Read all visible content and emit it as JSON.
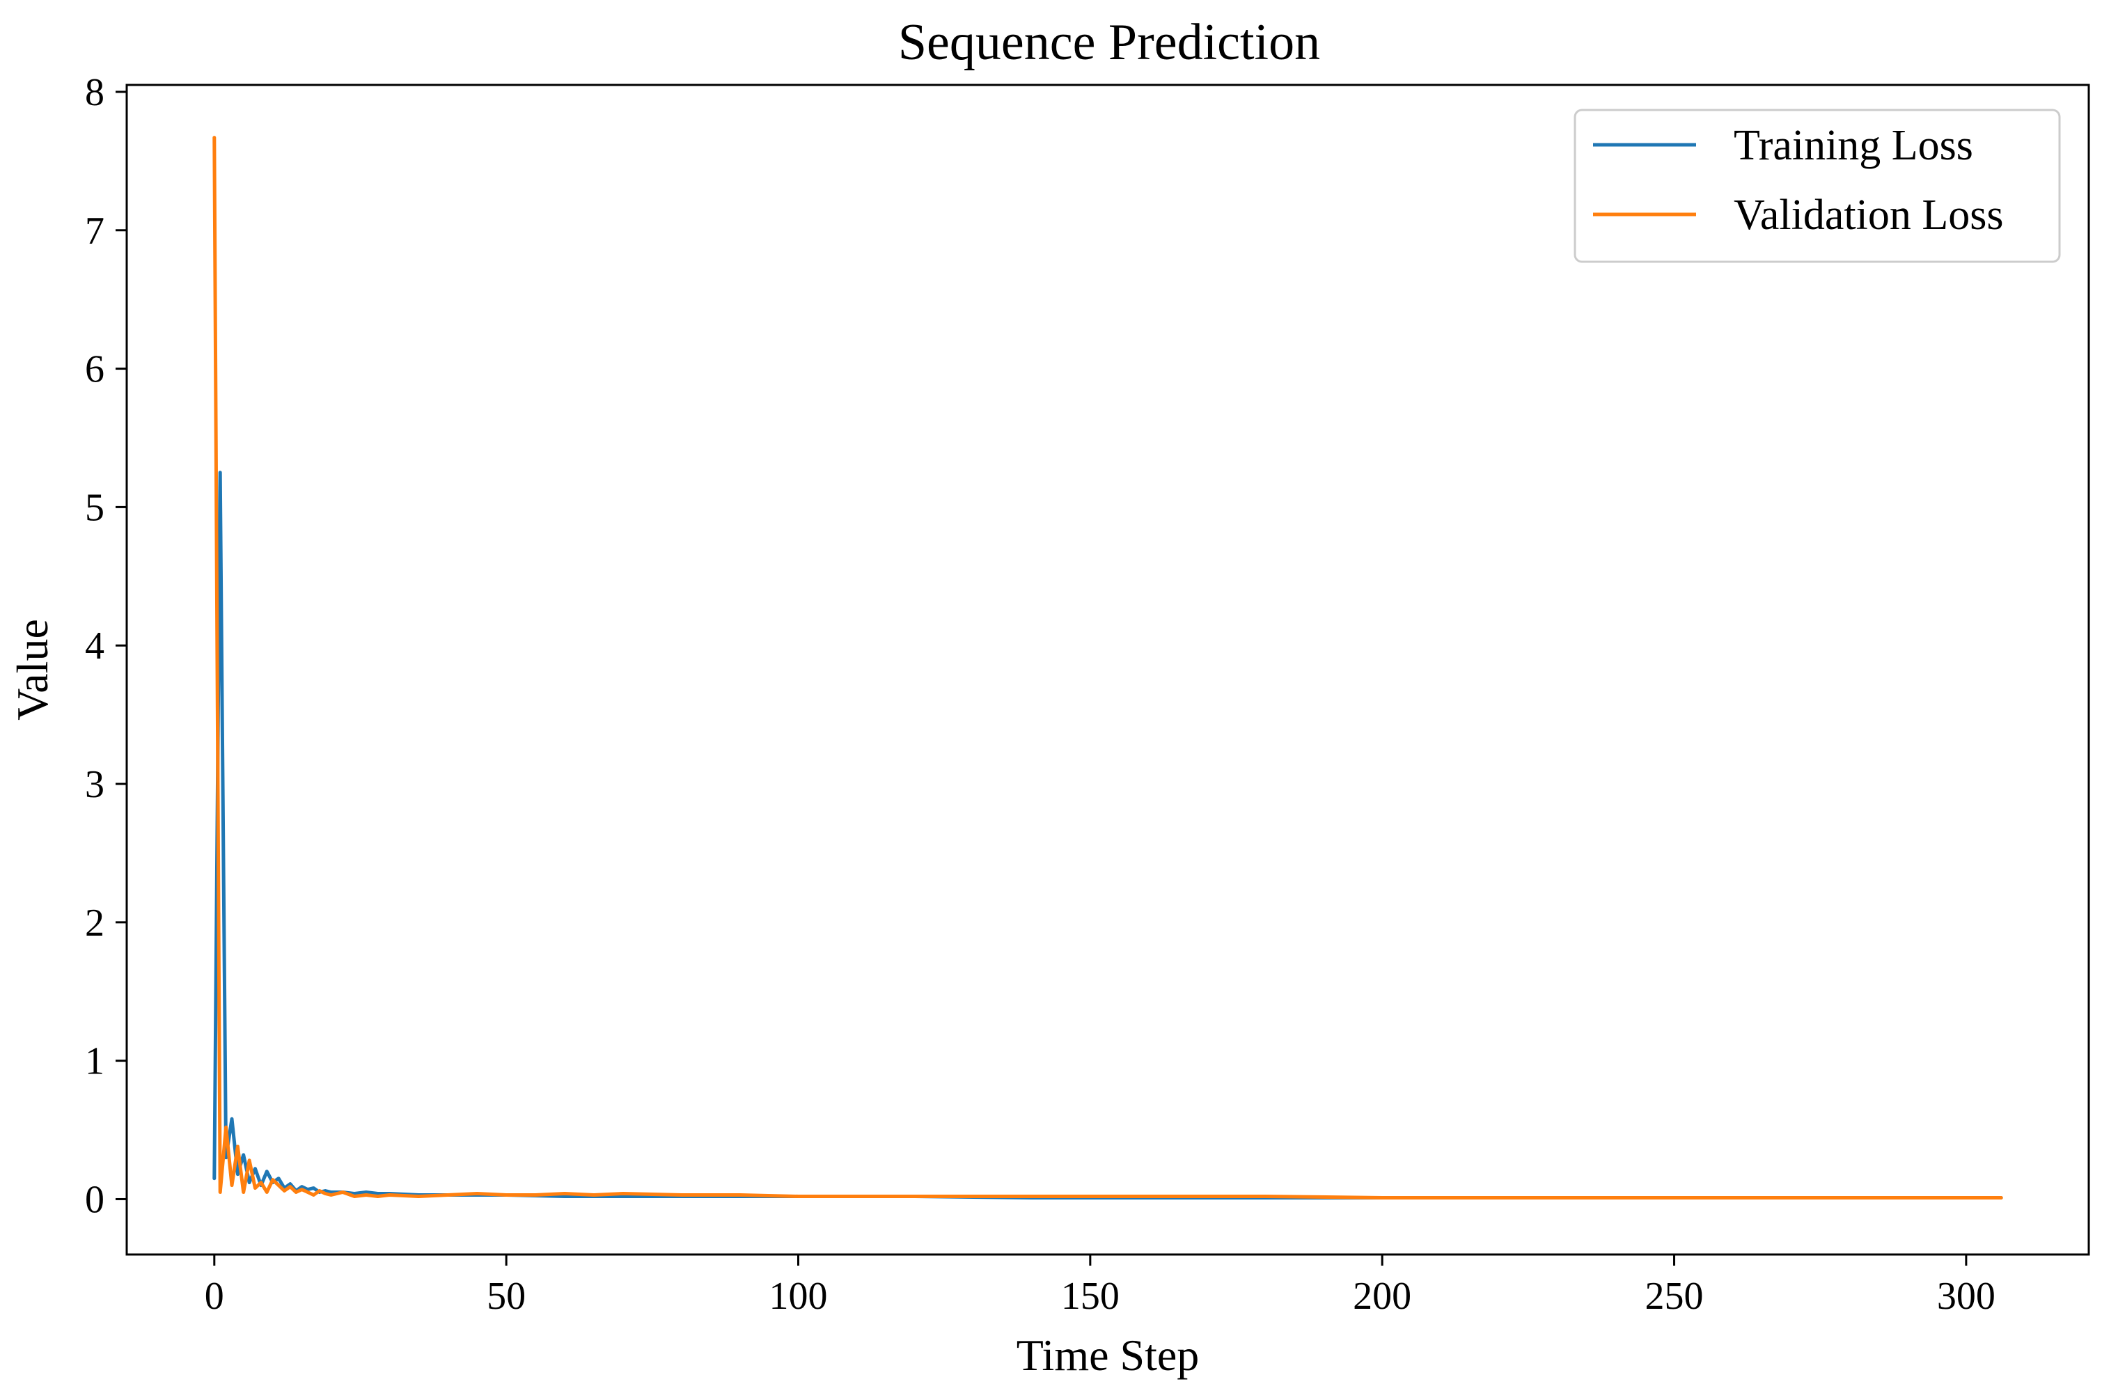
{
  "chart_data": {
    "type": "line",
    "title": "Sequence Prediction",
    "xlabel": "Time Step",
    "ylabel": "Value",
    "xlim": [
      -15,
      321
    ],
    "ylim": [
      -0.4,
      8.05
    ],
    "xticks": [
      0,
      50,
      100,
      150,
      200,
      250,
      300
    ],
    "yticks": [
      0,
      1,
      2,
      3,
      4,
      5,
      6,
      7,
      8
    ],
    "grid": false,
    "legend_position": "top-right",
    "series": [
      {
        "name": "Training Loss",
        "color": "#1f77b4",
        "x": [
          0,
          1,
          2,
          3,
          4,
          5,
          6,
          7,
          8,
          9,
          10,
          11,
          12,
          13,
          14,
          15,
          16,
          17,
          18,
          19,
          20,
          22,
          24,
          26,
          28,
          30,
          35,
          40,
          45,
          50,
          60,
          70,
          80,
          90,
          100,
          120,
          140,
          160,
          180,
          200,
          220,
          240,
          260,
          280,
          300,
          306
        ],
        "y": [
          0.15,
          5.25,
          0.3,
          0.58,
          0.18,
          0.32,
          0.12,
          0.22,
          0.1,
          0.2,
          0.12,
          0.15,
          0.08,
          0.11,
          0.06,
          0.09,
          0.07,
          0.08,
          0.05,
          0.06,
          0.05,
          0.05,
          0.04,
          0.05,
          0.04,
          0.04,
          0.03,
          0.03,
          0.03,
          0.03,
          0.02,
          0.02,
          0.02,
          0.02,
          0.02,
          0.02,
          0.01,
          0.01,
          0.01,
          0.01,
          0.01,
          0.01,
          0.01,
          0.01,
          0.01,
          0.01
        ]
      },
      {
        "name": "Validation Loss",
        "color": "#ff7f0e",
        "x": [
          0,
          1,
          2,
          3,
          4,
          5,
          6,
          7,
          8,
          9,
          10,
          11,
          12,
          13,
          14,
          15,
          16,
          17,
          18,
          19,
          20,
          22,
          24,
          26,
          28,
          30,
          35,
          40,
          45,
          50,
          55,
          60,
          65,
          70,
          80,
          90,
          100,
          120,
          140,
          160,
          180,
          200,
          220,
          240,
          260,
          280,
          300,
          306
        ],
        "y": [
          7.67,
          0.05,
          0.52,
          0.1,
          0.38,
          0.05,
          0.28,
          0.08,
          0.12,
          0.05,
          0.14,
          0.1,
          0.06,
          0.09,
          0.05,
          0.07,
          0.05,
          0.03,
          0.06,
          0.04,
          0.03,
          0.05,
          0.02,
          0.03,
          0.02,
          0.03,
          0.02,
          0.03,
          0.04,
          0.03,
          0.03,
          0.04,
          0.03,
          0.04,
          0.03,
          0.03,
          0.02,
          0.02,
          0.02,
          0.02,
          0.02,
          0.01,
          0.01,
          0.01,
          0.01,
          0.01,
          0.01,
          0.01
        ]
      }
    ]
  }
}
